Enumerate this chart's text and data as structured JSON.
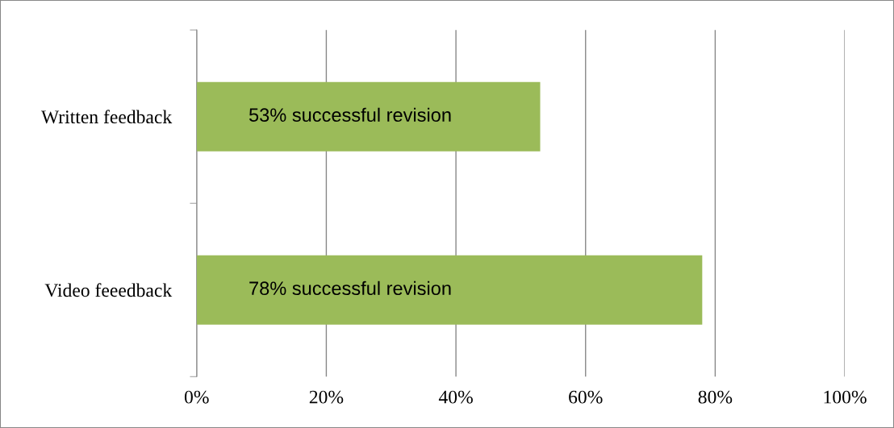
{
  "chart_data": {
    "type": "bar",
    "orientation": "horizontal",
    "categories": [
      "Written feedback",
      "Video feeedback"
    ],
    "values": [
      53,
      78
    ],
    "value_labels": [
      "53% successful revision",
      "78% successful revision"
    ],
    "color": "#9bbb59",
    "xlim": [
      0,
      100
    ],
    "xticks": [
      {
        "value": 0,
        "label": "0%"
      },
      {
        "value": 20,
        "label": "20%"
      },
      {
        "value": 40,
        "label": "40%"
      },
      {
        "value": 60,
        "label": "60%"
      },
      {
        "value": 80,
        "label": "80%"
      },
      {
        "value": 100,
        "label": "100%"
      }
    ],
    "grid": "x"
  }
}
